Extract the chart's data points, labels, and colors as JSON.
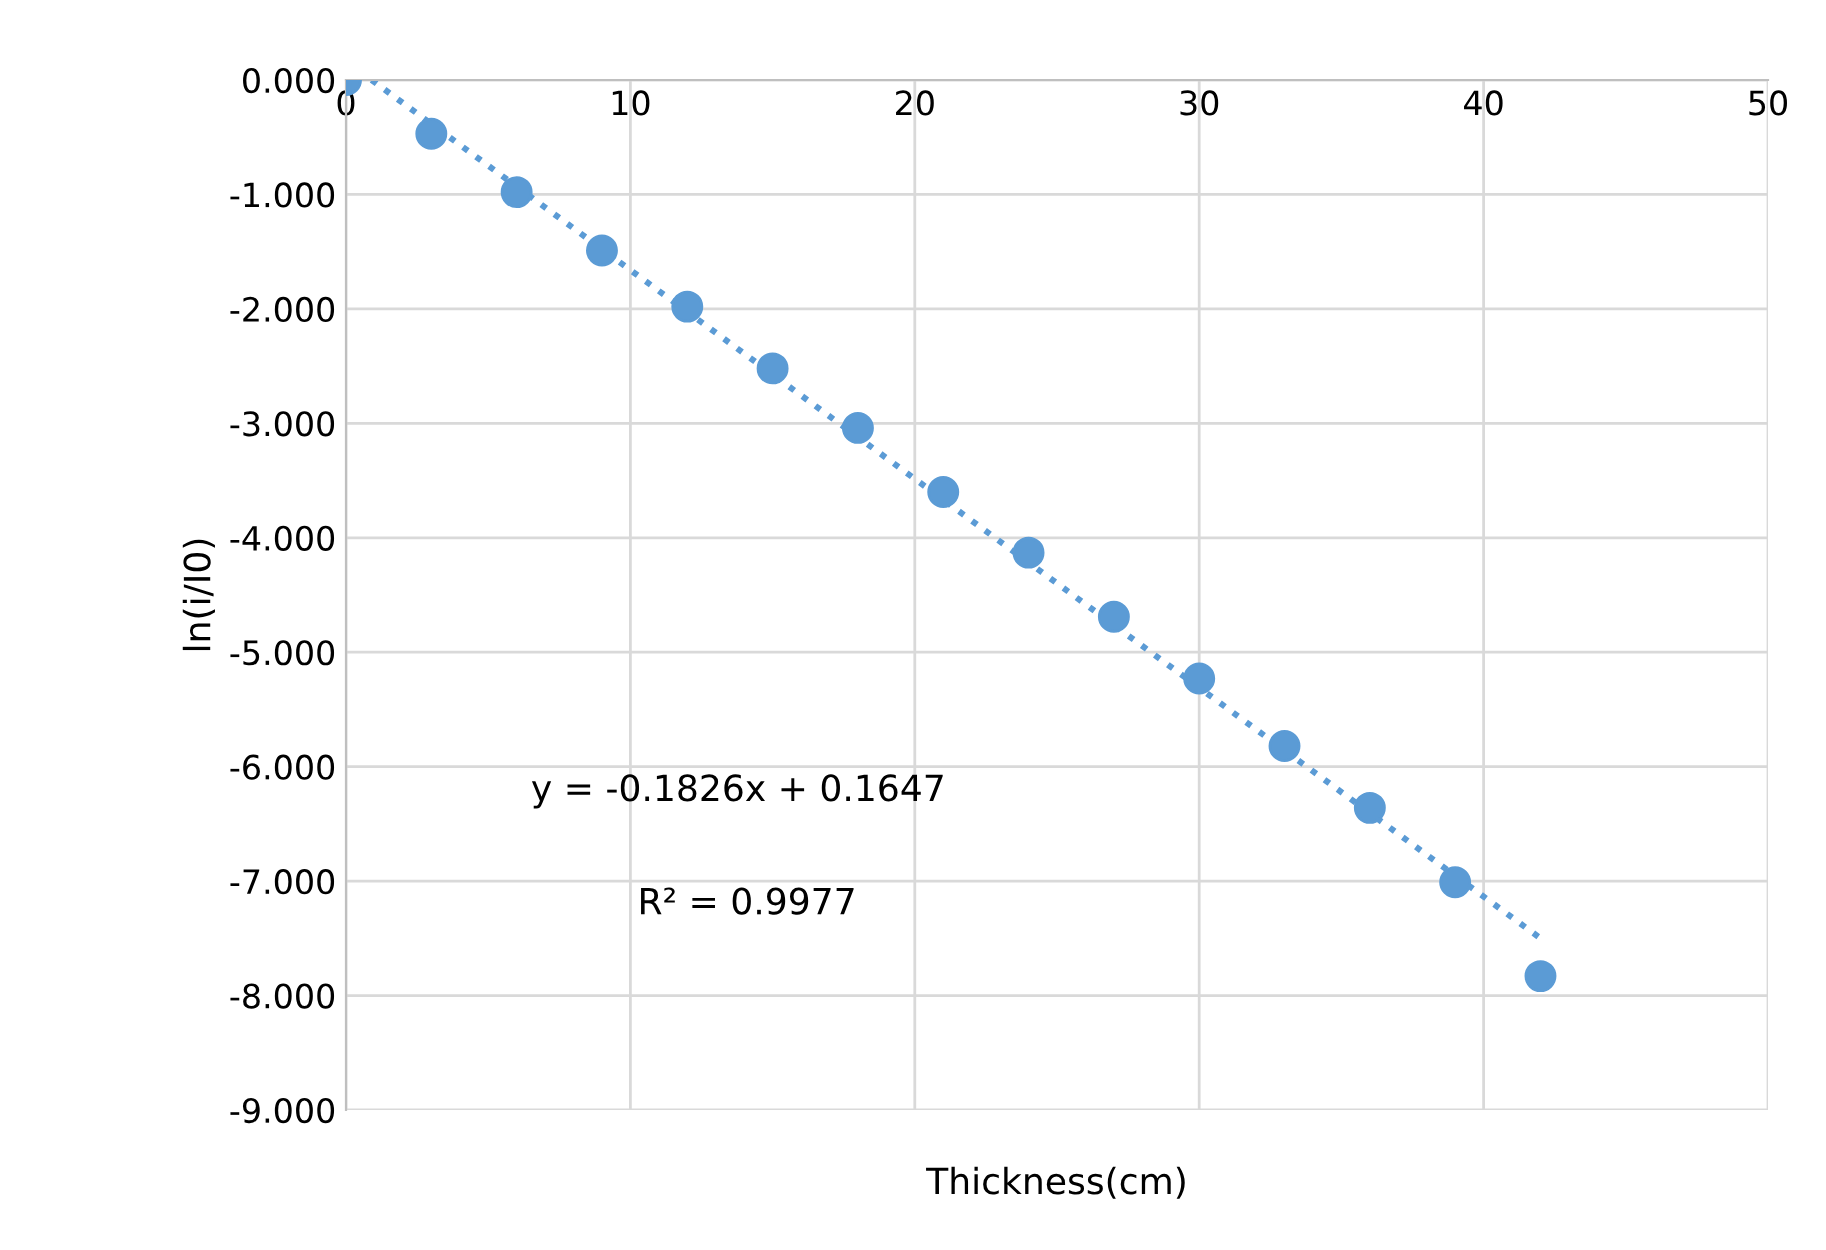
{
  "chart_data": {
    "type": "scatter",
    "xlabel": "Thickness(cm)",
    "ylabel": "ln(i/I0)",
    "x": [
      0,
      3,
      6,
      9,
      12,
      15,
      18,
      21,
      24,
      27,
      30,
      33,
      36,
      39,
      42
    ],
    "series": [
      {
        "color": "#5b9bd5",
        "marker": "circle",
        "values": [
          0.0,
          -0.47,
          -0.98,
          -1.49,
          -1.98,
          -2.52,
          -3.04,
          -3.6,
          -4.13,
          -4.69,
          -5.23,
          -5.82,
          -6.36,
          -7.01,
          -7.83
        ]
      },
      {
        "type": "line",
        "color": "#5b9bd5",
        "line_style": "dotted",
        "x": [
          0.9,
          42
        ],
        "values": [
          0.0,
          -7.5
        ]
      }
    ],
    "xlim": [
      0,
      50
    ],
    "xticks": [
      0,
      10,
      20,
      30,
      40,
      50
    ],
    "ylim": [
      -9,
      0
    ],
    "yticks": [
      {
        "value": 0,
        "label": "0.000"
      },
      {
        "value": -1,
        "label": "-1.000"
      },
      {
        "value": -2,
        "label": "-2.000"
      },
      {
        "value": -3,
        "label": "-3.000"
      },
      {
        "value": -4,
        "label": "-4.000"
      },
      {
        "value": -5,
        "label": "-5.000"
      },
      {
        "value": -6,
        "label": "-6.000"
      },
      {
        "value": -7,
        "label": "-7.000"
      },
      {
        "value": -8,
        "label": "-8.000"
      },
      {
        "value": -9,
        "label": "-9.000"
      }
    ],
    "grid": true,
    "annotations": [
      "y = -0.1826x + 0.1647",
      "R² = 0.9977"
    ]
  }
}
